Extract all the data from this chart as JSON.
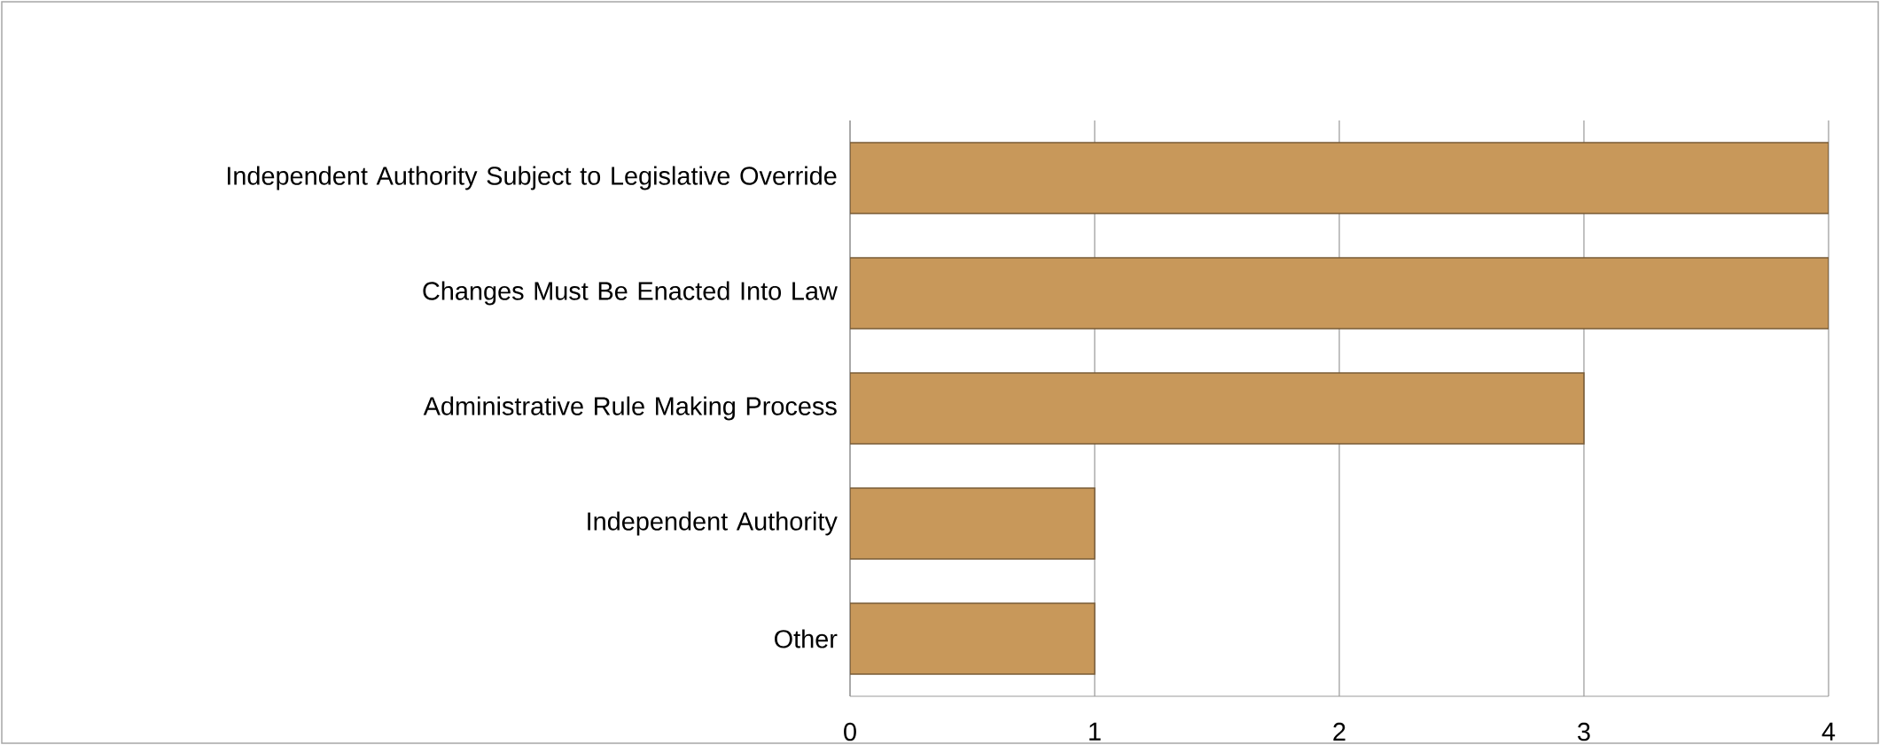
{
  "chart_data": {
    "type": "bar",
    "orientation": "horizontal",
    "categories": [
      "Independent Authority Subject to Legislative Override",
      "Changes Must Be Enacted Into Law",
      "Administrative Rule Making Process",
      "Independent Authority",
      "Other"
    ],
    "values": [
      4,
      4,
      3,
      1,
      1
    ],
    "color": "#c8985a",
    "xlim": [
      0,
      4
    ],
    "xticks": [
      0,
      1,
      2,
      3,
      4
    ],
    "grid": "x"
  }
}
